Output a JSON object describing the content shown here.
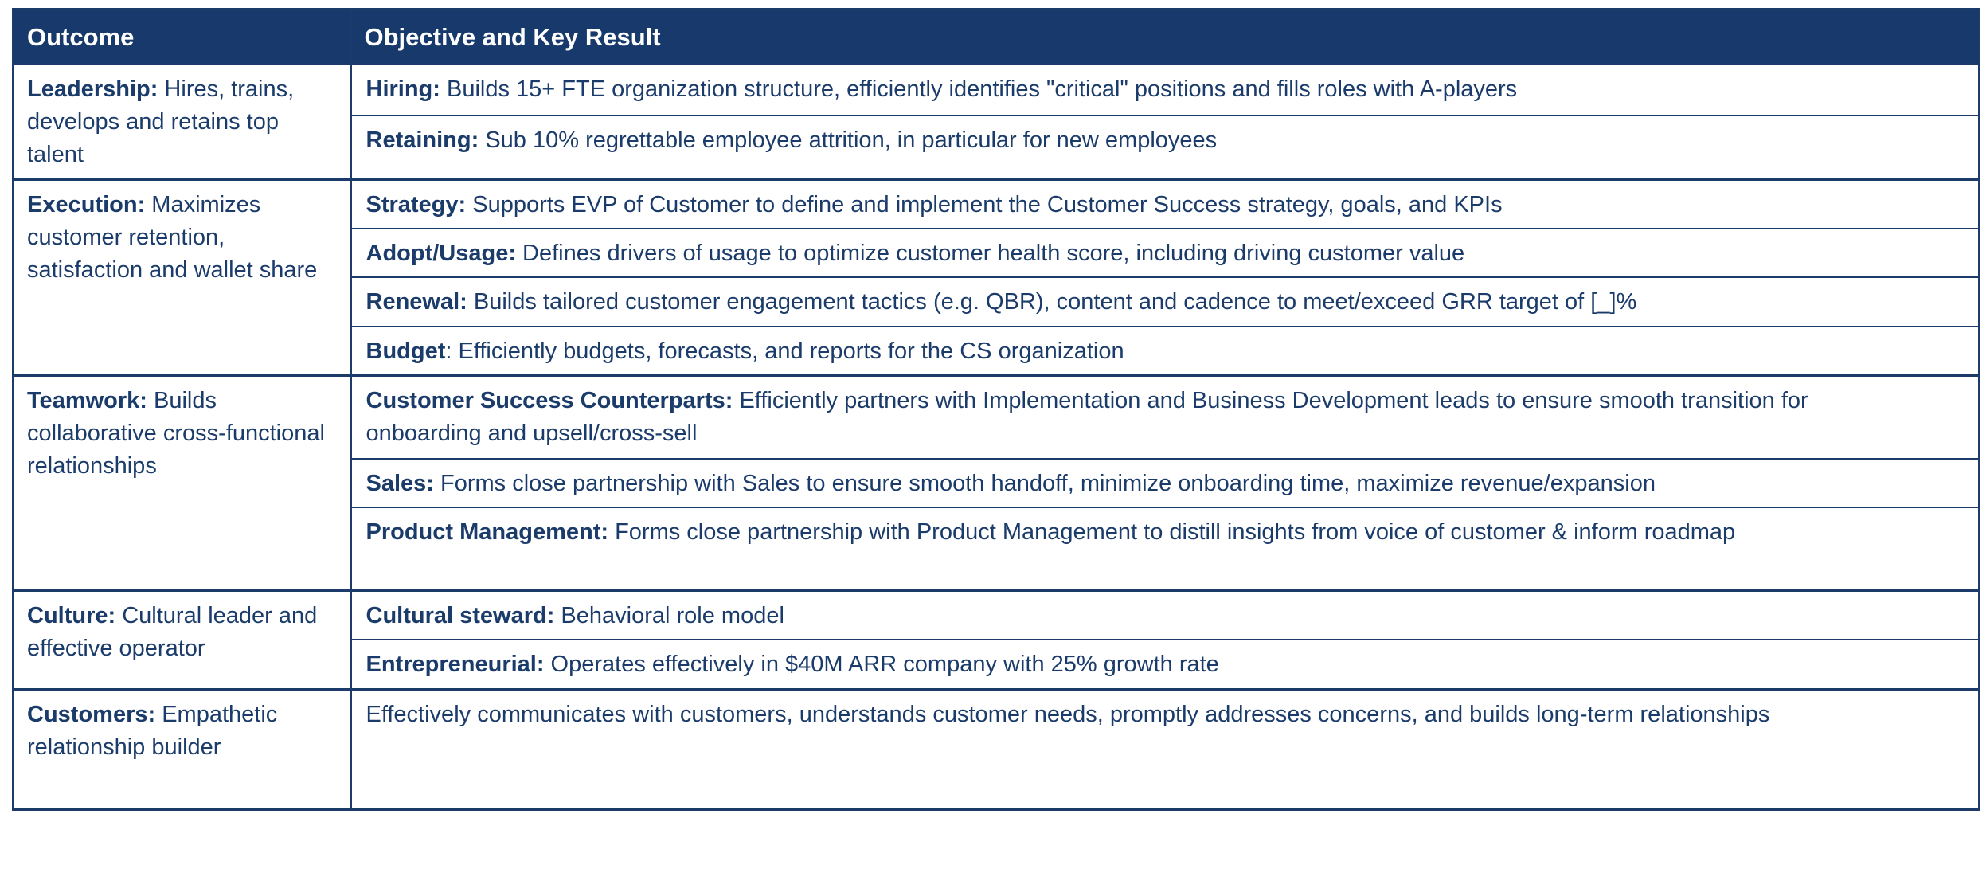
{
  "colors": {
    "header_bg": "#17396b",
    "header_text": "#ffffff",
    "body_text": "#1b3c6b",
    "border": "#1b3c6b",
    "background": "#ffffff"
  },
  "table": {
    "headers": [
      "Outcome",
      "Objective and Key Result"
    ],
    "groups": [
      {
        "outcome": {
          "label": "Leadership:",
          "text": " Hires, trains, develops and retains top talent"
        },
        "rows": [
          {
            "label": "Hiring:",
            "text": " Builds 15+ FTE organization structure, efficiently identifies \"critical\" positions and fills roles with A-players"
          },
          {
            "label": "Retaining:",
            "text": " Sub 10% regrettable employee attrition, in particular for new employees"
          }
        ]
      },
      {
        "outcome": {
          "label": "Execution:",
          "text": " Maximizes customer retention, satisfaction and wallet share"
        },
        "rows": [
          {
            "label": "Strategy:",
            "text": " Supports EVP of Customer to define and implement the Customer Success strategy, goals, and KPIs"
          },
          {
            "label": "Adopt/Usage:",
            "text": " Defines drivers of usage to optimize customer health score, including driving customer value"
          },
          {
            "label": "Renewal:",
            "text": " Builds tailored customer engagement tactics (e.g. QBR), content and cadence to meet/exceed GRR target of [_]%"
          },
          {
            "label": "Budget",
            "text": ": Efficiently budgets, forecasts, and reports for the CS organization"
          }
        ]
      },
      {
        "outcome": {
          "label": "Teamwork:",
          "text": " Builds collaborative cross-functional relationships"
        },
        "rows": [
          {
            "label": "Customer Success Counterparts:",
            "text": " Efficiently partners with Implementation and Business Development leads to ensure smooth transition for onboarding and upsell/cross-sell"
          },
          {
            "label": "Sales:",
            "text": " Forms close partnership with Sales to ensure smooth handoff, minimize onboarding time, maximize revenue/expansion"
          },
          {
            "label": "Product Management:",
            "text": " Forms close partnership with Product Management to distill insights from voice of customer & inform roadmap"
          }
        ]
      },
      {
        "outcome": {
          "label": "Culture:",
          "text": " Cultural leader and effective operator"
        },
        "rows": [
          {
            "label": "Cultural steward:",
            "text": " Behavioral role model"
          },
          {
            "label": "Entrepreneurial:",
            "text": " Operates effectively in $40M ARR company with 25% growth rate"
          }
        ]
      },
      {
        "outcome": {
          "label": "Customers:",
          "text": " Empathetic relationship builder"
        },
        "rows": [
          {
            "label": "",
            "text": "Effectively communicates with customers, understands customer needs, promptly addresses concerns, and builds long-term relationships"
          }
        ]
      }
    ]
  }
}
